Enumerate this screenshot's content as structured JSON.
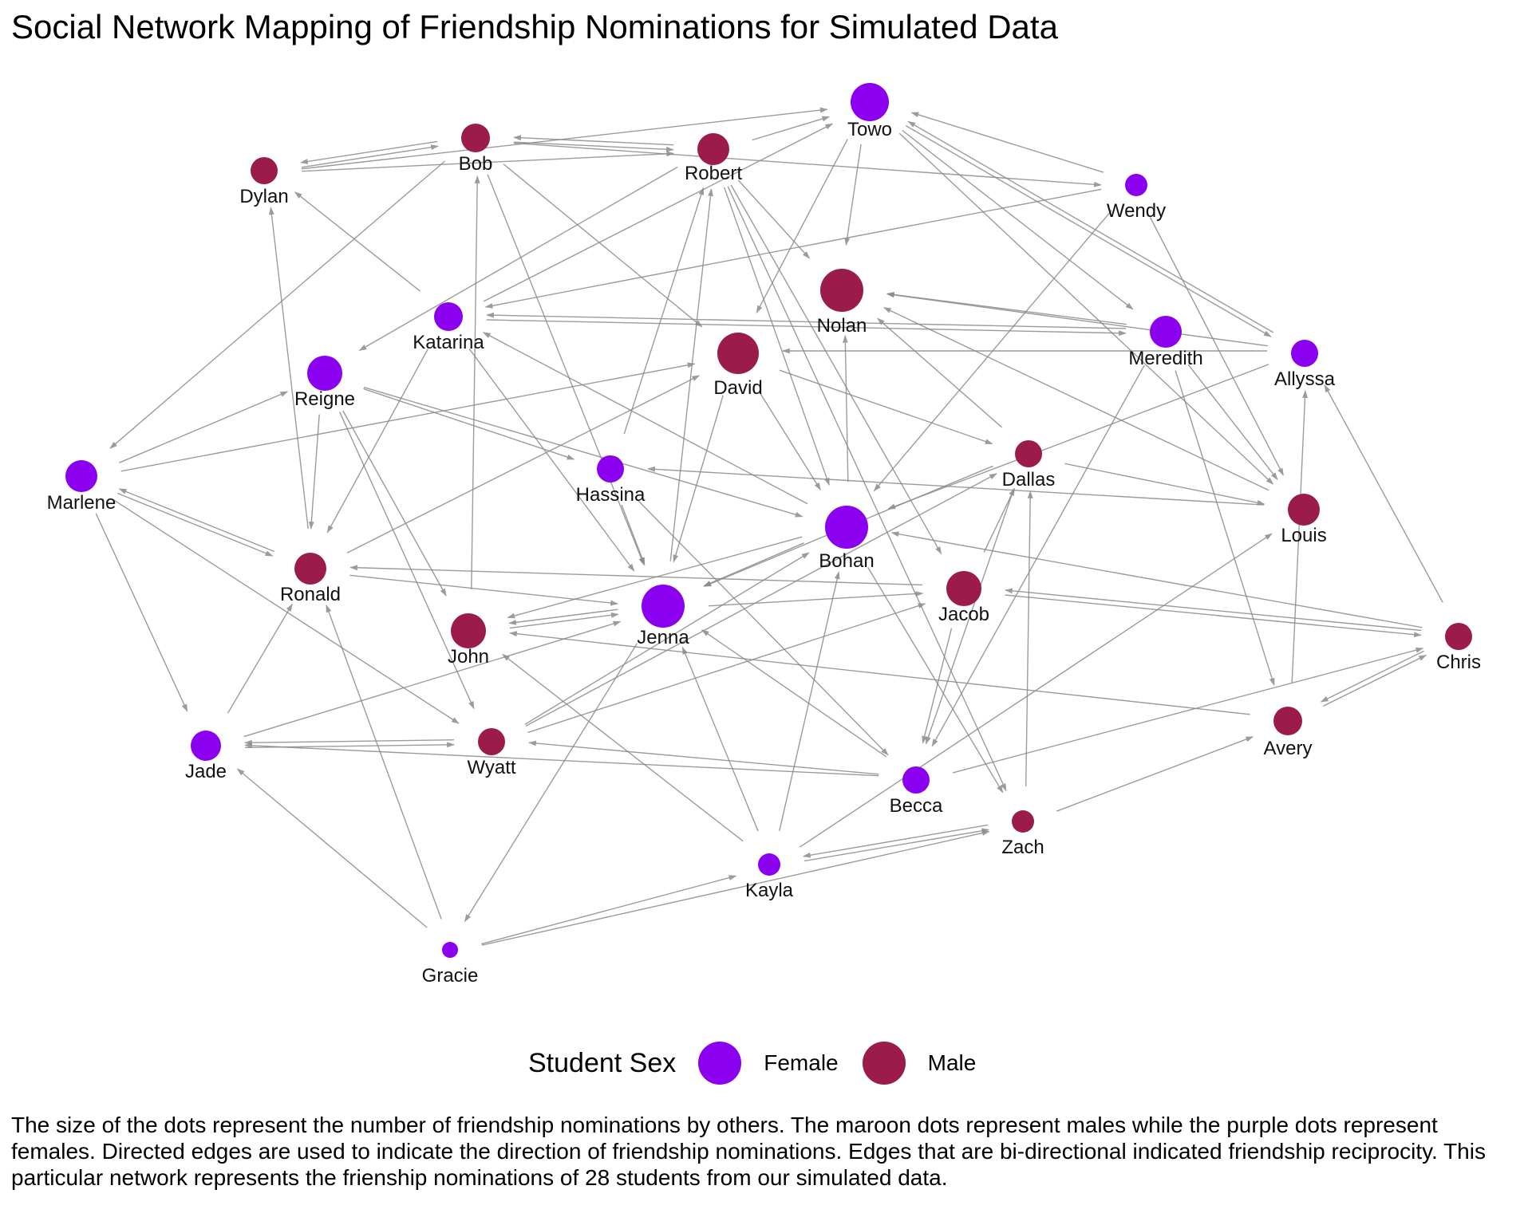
{
  "title": "Social Network Mapping of Friendship Nominations for Simulated Data",
  "colors": {
    "female": "#8B00EE",
    "male": "#9B1B4B",
    "edge": "#8a8a8a"
  },
  "legend": {
    "title": "Student Sex",
    "items": [
      {
        "label": "Female",
        "sex": "female"
      },
      {
        "label": "Male",
        "sex": "male"
      }
    ]
  },
  "caption": "The size of the dots represent the number of friendship nominations by others. The maroon dots represent males while the purple dots represent females. Directed edges are used to indicate the direction of friendship nominations. Edges that are bi-directional indicated friendship reciprocity. This particular network represents the frienship nominations of 28 students from our simulated data.",
  "nodes": [
    {
      "id": "Towo",
      "label": "Towo",
      "sex": "female"
    },
    {
      "id": "Bob",
      "label": "Bob",
      "sex": "male"
    },
    {
      "id": "Robert",
      "label": "Robert",
      "sex": "male"
    },
    {
      "id": "Dylan",
      "label": "Dylan",
      "sex": "male"
    },
    {
      "id": "Wendy",
      "label": "Wendy",
      "sex": "female"
    },
    {
      "id": "Nolan",
      "label": "Nolan",
      "sex": "male"
    },
    {
      "id": "Katarina",
      "label": "Katarina",
      "sex": "female"
    },
    {
      "id": "Meredith",
      "label": "Meredith",
      "sex": "female"
    },
    {
      "id": "Allyssa",
      "label": "Allyssa",
      "sex": "female"
    },
    {
      "id": "Reigne",
      "label": "Reigne",
      "sex": "female"
    },
    {
      "id": "David",
      "label": "David",
      "sex": "male"
    },
    {
      "id": "Marlene",
      "label": "Marlene",
      "sex": "female"
    },
    {
      "id": "Hassina",
      "label": "Hassina",
      "sex": "female"
    },
    {
      "id": "Dallas",
      "label": "Dallas",
      "sex": "male"
    },
    {
      "id": "Louis",
      "label": "Louis",
      "sex": "male"
    },
    {
      "id": "Bohan",
      "label": "Bohan",
      "sex": "female"
    },
    {
      "id": "Ronald",
      "label": "Ronald",
      "sex": "male"
    },
    {
      "id": "Jacob",
      "label": "Jacob",
      "sex": "male"
    },
    {
      "id": "Jenna",
      "label": "Jenna",
      "sex": "female"
    },
    {
      "id": "John",
      "label": "John",
      "sex": "male"
    },
    {
      "id": "Chris",
      "label": "Chris",
      "sex": "male"
    },
    {
      "id": "Avery",
      "label": "Avery",
      "sex": "male"
    },
    {
      "id": "Jade",
      "label": "Jade",
      "sex": "female"
    },
    {
      "id": "Wyatt",
      "label": "Wyatt",
      "sex": "male"
    },
    {
      "id": "Becca",
      "label": "Becca",
      "sex": "female"
    },
    {
      "id": "Zach",
      "label": "Zach",
      "sex": "male"
    },
    {
      "id": "Kayla",
      "label": "Kayla",
      "sex": "female"
    },
    {
      "id": "Gracie",
      "label": "Gracie",
      "sex": "female"
    }
  ],
  "edges": [
    [
      "Dylan",
      "Bob"
    ],
    [
      "Bob",
      "Dylan"
    ],
    [
      "Dylan",
      "Robert"
    ],
    [
      "Dylan",
      "Towo"
    ],
    [
      "Bob",
      "Robert"
    ],
    [
      "Bob",
      "Wendy"
    ],
    [
      "Bob",
      "David"
    ],
    [
      "Bob",
      "Marlene"
    ],
    [
      "Bob",
      "Jenna"
    ],
    [
      "Robert",
      "Bob"
    ],
    [
      "Robert",
      "Towo"
    ],
    [
      "Robert",
      "Nolan"
    ],
    [
      "Robert",
      "Reigne"
    ],
    [
      "Robert",
      "Jacob"
    ],
    [
      "Robert",
      "Bohan"
    ],
    [
      "Robert",
      "Zach"
    ],
    [
      "Towo",
      "Nolan"
    ],
    [
      "Towo",
      "Meredith"
    ],
    [
      "Towo",
      "Allyssa"
    ],
    [
      "Towo",
      "David"
    ],
    [
      "Towo",
      "Louis"
    ],
    [
      "Wendy",
      "Towo"
    ],
    [
      "Wendy",
      "Bohan"
    ],
    [
      "Wendy",
      "Katarina"
    ],
    [
      "Wendy",
      "Louis"
    ],
    [
      "Katarina",
      "Dylan"
    ],
    [
      "Katarina",
      "Towo"
    ],
    [
      "Katarina",
      "Meredith"
    ],
    [
      "Katarina",
      "Ronald"
    ],
    [
      "Katarina",
      "Jenna"
    ],
    [
      "Meredith",
      "Katarina"
    ],
    [
      "Meredith",
      "Nolan"
    ],
    [
      "Meredith",
      "Louis"
    ],
    [
      "Meredith",
      "Becca"
    ],
    [
      "Meredith",
      "Avery"
    ],
    [
      "Allyssa",
      "Towo"
    ],
    [
      "Allyssa",
      "Nolan"
    ],
    [
      "Allyssa",
      "David"
    ],
    [
      "Allyssa",
      "Bohan"
    ],
    [
      "Chris",
      "Allyssa"
    ],
    [
      "Reigne",
      "Hassina"
    ],
    [
      "Reigne",
      "Bohan"
    ],
    [
      "Reigne",
      "John"
    ],
    [
      "Reigne",
      "Wyatt"
    ],
    [
      "Reigne",
      "Ronald"
    ],
    [
      "David",
      "Dallas"
    ],
    [
      "David",
      "Jenna"
    ],
    [
      "David",
      "Bohan"
    ],
    [
      "Marlene",
      "Reigne"
    ],
    [
      "Marlene",
      "David"
    ],
    [
      "Marlene",
      "Ronald"
    ],
    [
      "Marlene",
      "Jade"
    ],
    [
      "Marlene",
      "Wyatt"
    ],
    [
      "Ronald",
      "Marlene"
    ],
    [
      "Ronald",
      "Jenna"
    ],
    [
      "Ronald",
      "David"
    ],
    [
      "Ronald",
      "Dylan"
    ],
    [
      "Hassina",
      "Robert"
    ],
    [
      "Hassina",
      "Jenna"
    ],
    [
      "Dallas",
      "Nolan"
    ],
    [
      "Dallas",
      "Louis"
    ],
    [
      "Dallas",
      "Jenna"
    ],
    [
      "Dallas",
      "Becca"
    ],
    [
      "Louis",
      "Hassina"
    ],
    [
      "Louis",
      "Nolan"
    ],
    [
      "Bohan",
      "Katarina"
    ],
    [
      "Bohan",
      "Nolan"
    ],
    [
      "Bohan",
      "Jenna"
    ],
    [
      "Bohan",
      "Zach"
    ],
    [
      "Bohan",
      "John"
    ],
    [
      "Jacob",
      "Ronald"
    ],
    [
      "Jacob",
      "Becca"
    ],
    [
      "Jacob",
      "Dallas"
    ],
    [
      "Jacob",
      "Chris"
    ],
    [
      "Chris",
      "Jacob"
    ],
    [
      "Chris",
      "Bohan"
    ],
    [
      "Chris",
      "Avery"
    ],
    [
      "Avery",
      "Chris"
    ],
    [
      "Avery",
      "John"
    ],
    [
      "Avery",
      "Allyssa"
    ],
    [
      "Jenna",
      "John"
    ],
    [
      "Jenna",
      "Jacob"
    ],
    [
      "Jenna",
      "Gracie"
    ],
    [
      "Jenna",
      "Robert"
    ],
    [
      "John",
      "Jenna"
    ],
    [
      "John",
      "Bob"
    ],
    [
      "Jade",
      "Ronald"
    ],
    [
      "Jade",
      "Jenna"
    ],
    [
      "Jade",
      "Wyatt"
    ],
    [
      "Wyatt",
      "Jade"
    ],
    [
      "Wyatt",
      "Bohan"
    ],
    [
      "Wyatt",
      "Jacob"
    ],
    [
      "Wyatt",
      "Dallas"
    ],
    [
      "Becca",
      "Jenna"
    ],
    [
      "Becca",
      "Jade"
    ],
    [
      "Becca",
      "Wyatt"
    ],
    [
      "Becca",
      "Chris"
    ],
    [
      "Zach",
      "Avery"
    ],
    [
      "Zach",
      "Dallas"
    ],
    [
      "Kayla",
      "Zach"
    ],
    [
      "Kayla",
      "John"
    ],
    [
      "Kayla",
      "Jenna"
    ],
    [
      "Kayla",
      "Louis"
    ],
    [
      "Kayla",
      "Bohan"
    ],
    [
      "Zach",
      "Kayla"
    ],
    [
      "Gracie",
      "Kayla"
    ],
    [
      "Gracie",
      "Zach"
    ],
    [
      "Gracie",
      "Jade"
    ],
    [
      "Gracie",
      "Ronald"
    ],
    [
      "Hassina",
      "Becca"
    ]
  ]
}
